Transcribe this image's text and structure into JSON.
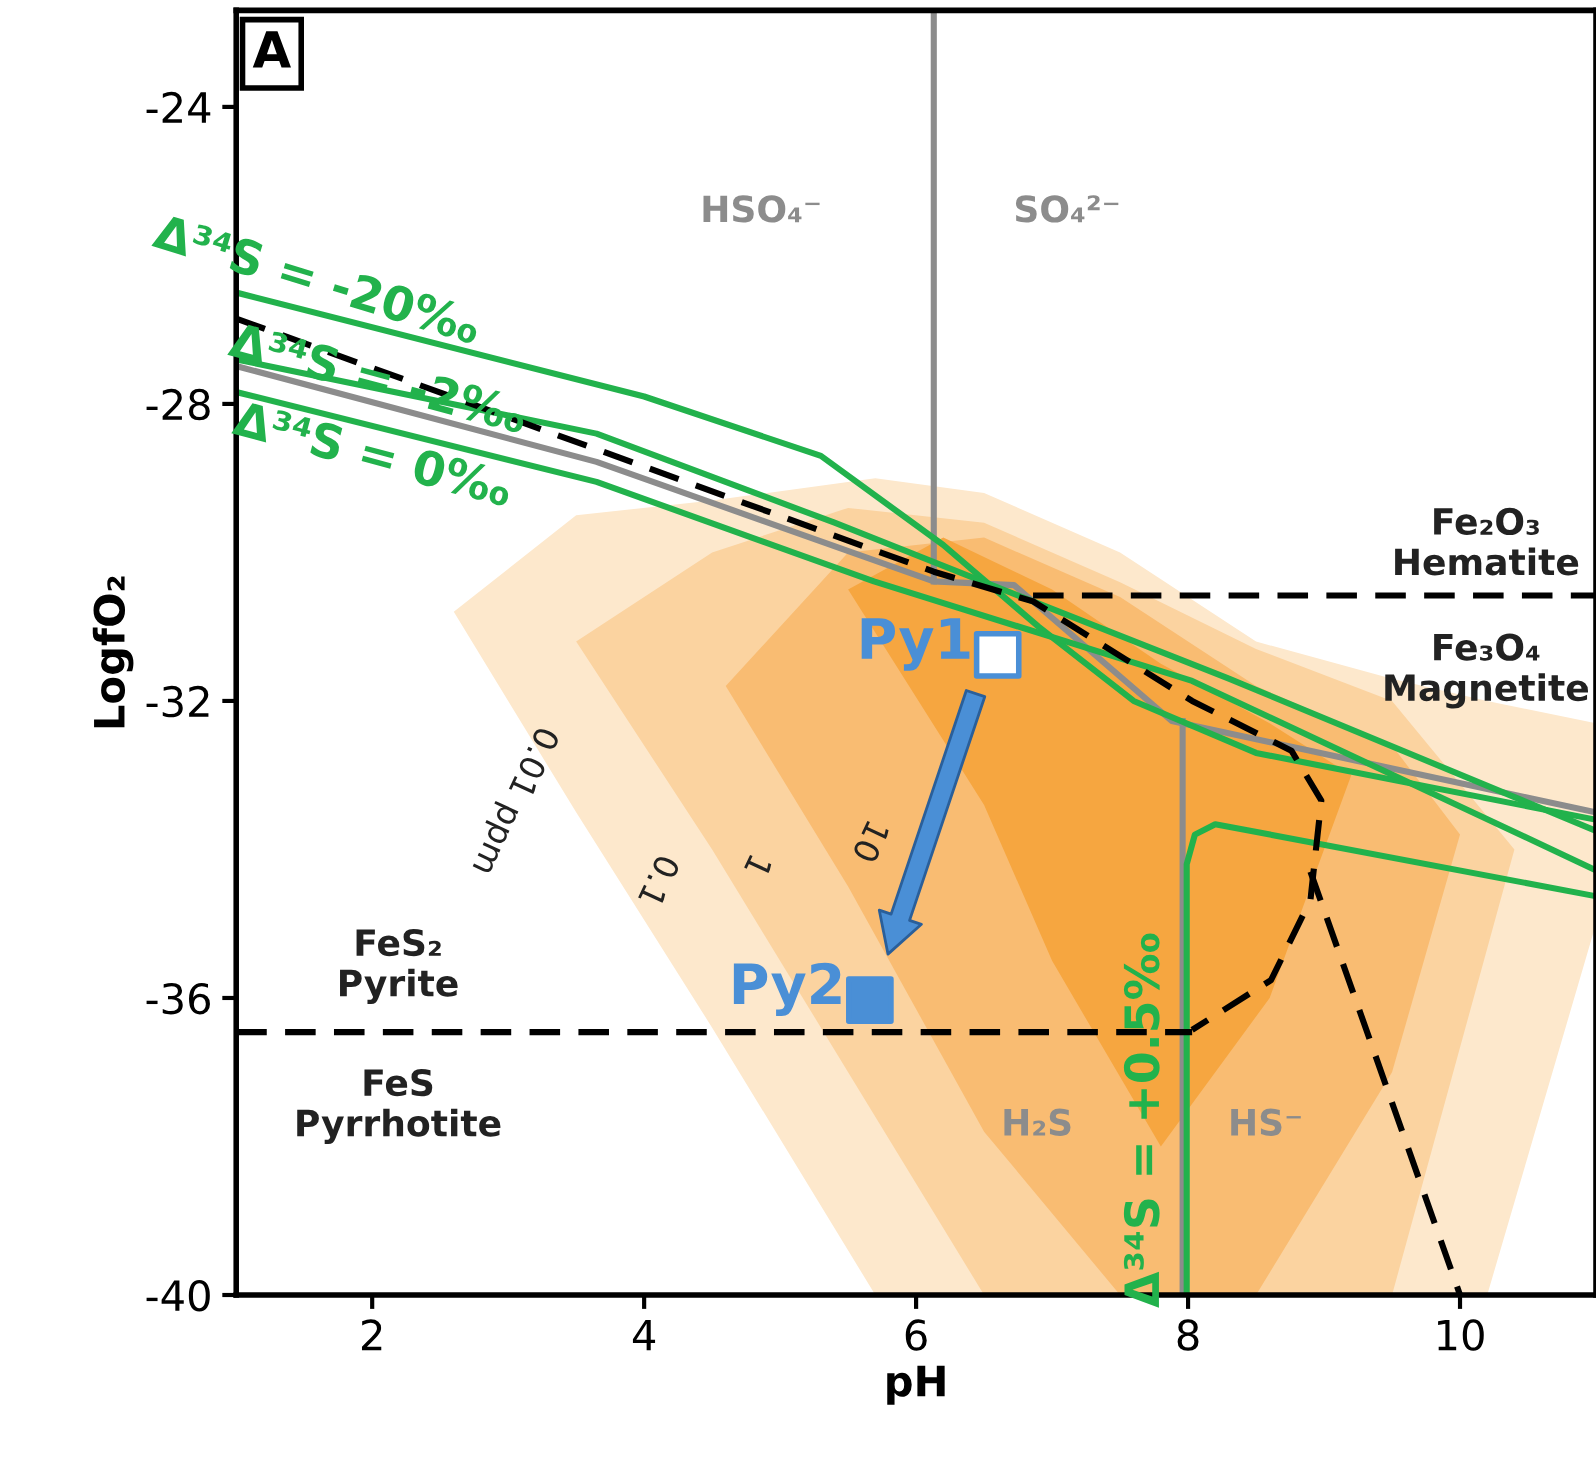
{
  "chart_data": {
    "type": "line",
    "title": "A",
    "xlabel": "pH",
    "ylabel": "LogfO₂",
    "xlim": [
      1,
      11
    ],
    "ylim": [
      -40,
      -22.7
    ],
    "xticks": [
      2,
      4,
      6,
      8,
      10
    ],
    "yticks": [
      -24,
      -28,
      -32,
      -36,
      -40
    ],
    "grid": false,
    "legend": false,
    "series": [
      {
        "type": "area",
        "color": "#fde8cc",
        "x": [
          2.6,
          3.5,
          4.5,
          5.7,
          6.5,
          7.5,
          8.5,
          9.5,
          10.2,
          11,
          11,
          10.2,
          9.5,
          8.5,
          7.5,
          6.5,
          5.7,
          4.5,
          3.5
        ],
        "values": [
          -30.8,
          -29.5,
          -29.3,
          -29.0,
          -29.2,
          -30.0,
          -31.2,
          -31.7,
          -32.0,
          -32.3,
          -35.0,
          -40,
          -40,
          -40,
          -40,
          -40,
          -40,
          -36.4,
          -33.5
        ]
      },
      {
        "type": "area",
        "color": "#fbd3a0",
        "x": [
          3.5,
          4.5,
          5.5,
          6.5,
          7.5,
          8.5,
          9.5,
          10.4,
          9.5,
          8.5,
          7.5,
          6.5,
          5.5,
          4.5
        ],
        "values": [
          -31.2,
          -30.0,
          -29.4,
          -29.6,
          -30.4,
          -31.3,
          -32.0,
          -34.0,
          -40,
          -40,
          -40,
          -40,
          -37.0,
          -34.0
        ]
      },
      {
        "type": "area",
        "color": "#f9bc72",
        "x": [
          4.6,
          5.5,
          6.5,
          7.5,
          8.5,
          9.5,
          10.0,
          9.5,
          8.5,
          7.5,
          6.5,
          5.5
        ],
        "values": [
          -31.8,
          -30.0,
          -29.8,
          -30.6,
          -31.8,
          -32.6,
          -33.8,
          -37,
          -40,
          -40,
          -37.8,
          -34.5
        ]
      },
      {
        "type": "area",
        "color": "#f6a640",
        "x": [
          5.5,
          6.2,
          7.0,
          7.8,
          8.6,
          9.2,
          8.6,
          7.8,
          7.0,
          6.5
        ],
        "values": [
          -30.5,
          -29.8,
          -30.5,
          -31.5,
          -32.3,
          -33.0,
          -36.0,
          -38.0,
          -35.5,
          -33.4
        ]
      },
      {
        "color": "#8c8c8c",
        "line_style": "solid",
        "x": [
          6.13,
          6.13
        ],
        "values": [
          -22.7,
          -30.39
        ]
      },
      {
        "color": "#8c8c8c",
        "line_style": "solid",
        "x": [
          1,
          3.65,
          6.13,
          6.72,
          7.88,
          11
        ],
        "values": [
          -27.49,
          -28.78,
          -30.39,
          -30.44,
          -32.27,
          -33.5
        ]
      },
      {
        "color": "#8c8c8c",
        "line_style": "solid",
        "x": [
          7.96,
          7.96
        ],
        "values": [
          -32.27,
          -40
        ]
      },
      {
        "color": "#22b24c",
        "line_style": "solid",
        "x": [
          1,
          4,
          5.3,
          6.2,
          6.9,
          7.6,
          8.5,
          11
        ],
        "values": [
          -26.5,
          -27.9,
          -28.7,
          -29.9,
          -31.0,
          -32.0,
          -32.7,
          -33.6
        ]
      },
      {
        "color": "#22b24c",
        "line_style": "solid",
        "x": [
          1,
          3.65,
          5.4,
          6.86,
          8.3,
          11
        ],
        "values": [
          -27.4,
          -28.4,
          -29.6,
          -30.66,
          -31.7,
          -33.75
        ]
      },
      {
        "color": "#22b24c",
        "line_style": "solid",
        "x": [
          1,
          3.65,
          5.69,
          8.03,
          11
        ],
        "values": [
          -27.84,
          -29.05,
          -30.39,
          -31.73,
          -34.28
        ]
      },
      {
        "color": "#22b24c",
        "line_style": "solid",
        "x": [
          7.99,
          7.99,
          8.05,
          8.2,
          11
        ],
        "values": [
          -40,
          -34.2,
          -33.8,
          -33.66,
          -34.63
        ]
      },
      {
        "color": "#000000",
        "line_style": "dashed",
        "x": [
          1,
          6.13,
          6.86,
          8.03,
          8.76,
          8.98,
          8.9,
          8.61,
          8.03
        ],
        "values": [
          -26.85,
          -30.26,
          -30.66,
          -32.0,
          -32.67,
          -33.34,
          -34.68,
          -35.76,
          -36.43
        ]
      },
      {
        "color": "#000000",
        "line_style": "dashed",
        "x": [
          1,
          8.03
        ],
        "values": [
          -36.46,
          -36.46
        ]
      },
      {
        "color": "#000000",
        "line_style": "dashed",
        "x": [
          6.86,
          11
        ],
        "values": [
          -30.58,
          -30.58
        ]
      },
      {
        "color": "#000000",
        "line_style": "dashed",
        "x": [
          8.9,
          10.0
        ],
        "values": [
          -34.3,
          -40
        ]
      },
      {
        "type": "scatter",
        "name": "Py1",
        "color": "#ffffff",
        "marker": "square",
        "x": [
          6.6
        ],
        "values": [
          -31.38
        ]
      },
      {
        "type": "scatter",
        "name": "Py2",
        "color": "#4a8fd6",
        "marker": "square",
        "x": [
          5.66
        ],
        "values": [
          -36.03
        ]
      }
    ],
    "annotations": [
      "Δ³⁴S = -20‰",
      "Δ³⁴S = -2‰",
      "Δ³⁴S = 0‰",
      "Δ³⁴S = +0.5‰",
      "HSO₄⁻",
      "SO₄²⁻",
      "H₂S",
      "HS⁻",
      "Fe₂O₃\nHematite",
      "Fe₃O₄\nMagnetite",
      "FeS₂\nPyrite",
      "FeS\nPyrrhotite",
      "0.01 ppm",
      "0.1",
      "1",
      "10"
    ]
  }
}
